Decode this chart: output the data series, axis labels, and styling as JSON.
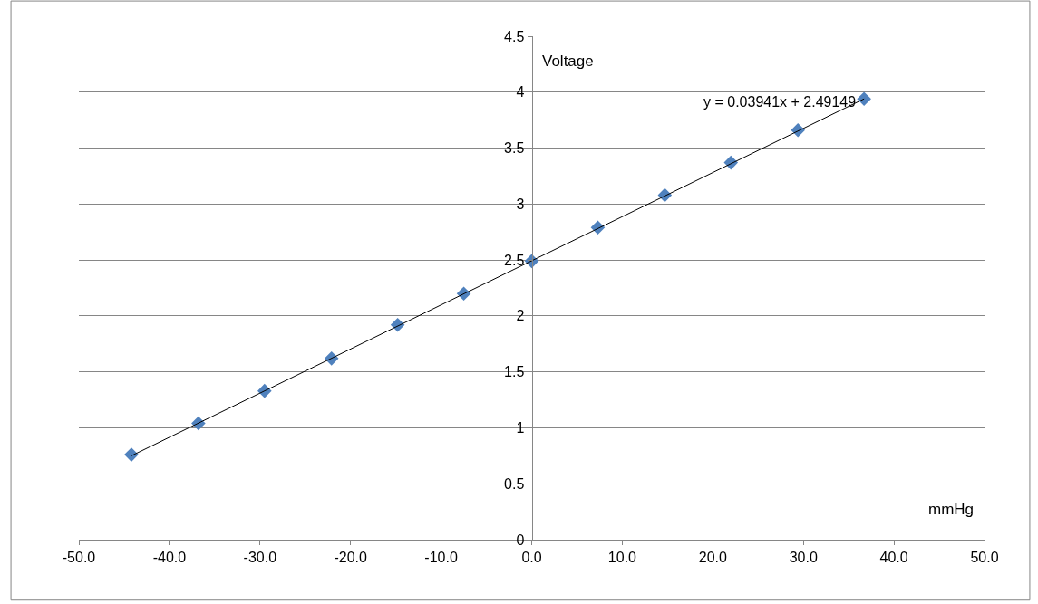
{
  "chart_data": {
    "type": "scatter",
    "xlabel": "mmHg",
    "ylabel": "Voltage",
    "annotations": [
      "y = 0.03941x + 2.49149"
    ],
    "series": [
      {
        "color": "#4f81bd",
        "marker": "diamond",
        "x": [
          -44.2,
          -36.8,
          -29.5,
          -22.1,
          -14.8,
          -7.5,
          0.0,
          7.3,
          14.7,
          22.0,
          29.4,
          36.7
        ],
        "values": [
          0.76,
          1.04,
          1.33,
          1.62,
          1.92,
          2.2,
          2.49,
          2.79,
          3.08,
          3.37,
          3.66,
          3.94
        ]
      },
      {
        "type": "line",
        "color": "#000000",
        "marker": "none",
        "line_style": "solid",
        "x": [
          -44.2,
          36.7
        ],
        "values": [
          0.75,
          3.94
        ]
      }
    ],
    "xlim": [
      -50,
      50
    ],
    "ylim": [
      0,
      4.5
    ],
    "xticks": [
      {
        "value": -50,
        "label": "-50.0"
      },
      {
        "value": -40,
        "label": "-40.0"
      },
      {
        "value": -30,
        "label": "-30.0"
      },
      {
        "value": -20,
        "label": "-20.0"
      },
      {
        "value": -10,
        "label": "-10.0"
      },
      {
        "value": 0,
        "label": "0.0"
      },
      {
        "value": 10,
        "label": "10.0"
      },
      {
        "value": 20,
        "label": "20.0"
      },
      {
        "value": 30,
        "label": "30.0"
      },
      {
        "value": 40,
        "label": "40.0"
      },
      {
        "value": 50,
        "label": "50.0"
      }
    ],
    "yticks": [
      0,
      0.5,
      1,
      1.5,
      2,
      2.5,
      3,
      3.5,
      4,
      4.5
    ],
    "grid": "y"
  }
}
